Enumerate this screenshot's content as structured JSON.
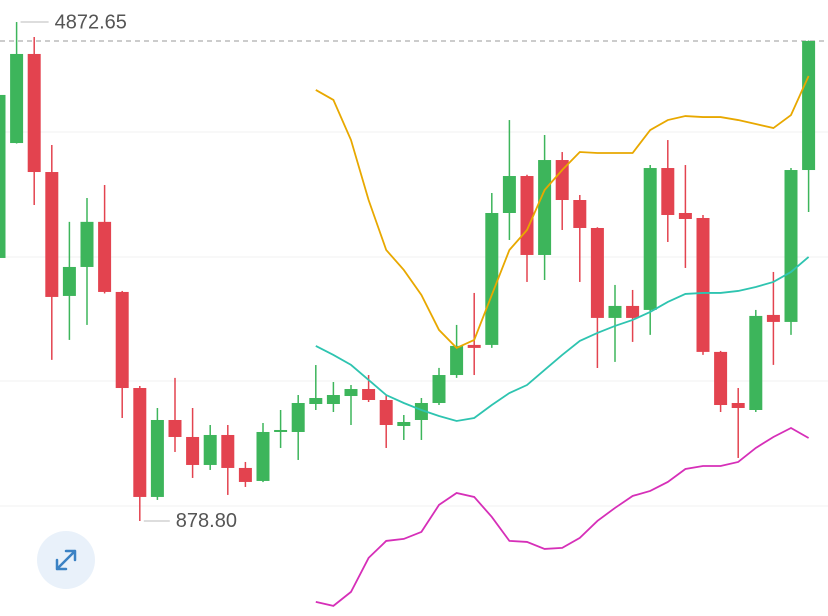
{
  "chart_data": {
    "type": "candlestick",
    "categories": [
      null,
      null,
      null,
      null,
      null,
      null,
      null,
      null,
      null,
      null,
      null,
      null,
      null,
      null,
      null,
      null,
      null,
      null,
      null,
      null,
      null,
      null,
      null,
      null,
      null,
      null,
      null,
      null,
      null,
      null,
      null,
      null,
      null,
      null,
      null,
      null,
      null,
      null,
      null,
      null,
      null,
      null,
      null,
      null,
      null,
      null,
      null
    ],
    "open": [
      2984,
      3904,
      4617,
      3672,
      2680,
      2912,
      3273,
      2712,
      1943,
      1071,
      1687,
      1551,
      1327,
      1567,
      1303,
      1199,
      1591,
      1591,
      1815,
      1815,
      1879,
      1935,
      1847,
      1639,
      1687,
      1823,
      2047,
      2288,
      2288,
      3344,
      3640,
      3008,
      3768,
      3448,
      3224,
      2504,
      2600,
      2568,
      3704,
      3344,
      3304,
      2232,
      1823,
      1767,
      2528,
      2472,
      3688
    ],
    "close": [
      4289,
      4617,
      3672,
      2672,
      2912,
      3273,
      2712,
      1943,
      1071,
      1687,
      1551,
      1327,
      1567,
      1303,
      1191,
      1591,
      1607,
      1823,
      1863,
      1887,
      1935,
      1847,
      1647,
      1671,
      1823,
      2047,
      2280,
      2264,
      3344,
      3640,
      3008,
      3768,
      3448,
      3224,
      2504,
      2600,
      2504,
      3704,
      3328,
      3296,
      2232,
      1807,
      1783,
      2520,
      2472,
      3688,
      4721
    ],
    "high": [
      4729,
      4872.65,
      4753,
      3888,
      3273,
      3464,
      3568,
      2720,
      1959,
      1783,
      2024,
      1783,
      1647,
      1647,
      1351,
      1663,
      1767,
      1887,
      2127,
      1991,
      1967,
      2047,
      1887,
      1727,
      1863,
      2104,
      2448,
      2704,
      3504,
      4088,
      3650,
      3968,
      3832,
      3488,
      3230,
      2768,
      2728,
      3728,
      3928,
      3728,
      3328,
      2240,
      1943,
      2568,
      2872,
      3704,
      4725
    ],
    "low": [
      2968,
      3900,
      3408,
      2168,
      2328,
      2448,
      2700,
      1703,
      878.8,
      1047,
      1431,
      1223,
      1287,
      1087,
      1151,
      1190,
      1463,
      1367,
      1767,
      1751,
      1647,
      1831,
      1463,
      1527,
      1527,
      1807,
      2024,
      2047,
      2264,
      3128,
      2792,
      2808,
      3208,
      2792,
      2103,
      2152,
      2312,
      2368,
      3112,
      2904,
      2208,
      1751,
      1383,
      1751,
      2128,
      2368,
      3352
    ],
    "up_color": "#3db55b",
    "down_color": "#e3434f",
    "series": [
      {
        "color": "#e8a800",
        "values": [
          null,
          null,
          null,
          null,
          null,
          null,
          null,
          null,
          null,
          null,
          null,
          null,
          null,
          null,
          null,
          null,
          null,
          null,
          4329,
          4249,
          3928,
          3448,
          3048,
          2888,
          2688,
          2408,
          2264,
          2328,
          2688,
          3048,
          3208,
          3528,
          3688,
          3832,
          3824,
          3824,
          3824,
          4008,
          4088,
          4120,
          4112,
          4112,
          4088,
          4056,
          4024,
          4128,
          4441
        ]
      },
      {
        "color": "#2ec4b0",
        "values": [
          null,
          null,
          null,
          null,
          null,
          null,
          null,
          null,
          null,
          null,
          null,
          null,
          null,
          null,
          null,
          null,
          null,
          null,
          2280,
          2208,
          2128,
          2008,
          1887,
          1823,
          1767,
          1719,
          1679,
          1703,
          1807,
          1903,
          1967,
          2088,
          2208,
          2320,
          2384,
          2440,
          2488,
          2552,
          2632,
          2696,
          2704,
          2704,
          2720,
          2752,
          2792,
          2872,
          2992
        ]
      },
      {
        "color": "#d62fb8",
        "values": [
          null,
          null,
          null,
          null,
          null,
          null,
          null,
          null,
          null,
          null,
          null,
          null,
          null,
          null,
          null,
          null,
          null,
          null,
          231,
          199,
          311,
          583,
          719,
          735,
          791,
          1007,
          1103,
          1071,
          911,
          719,
          711,
          655,
          663,
          743,
          879,
          983,
          1079,
          1119,
          1191,
          1295,
          1319,
          1319,
          1351,
          1463,
          1551,
          1623,
          1543
        ]
      }
    ],
    "ylim": [
      118,
      5049
    ],
    "high_label": 4872.65,
    "low_label": {
      "value": 878.8,
      "label": "878.80"
    },
    "last_price_line": true
  }
}
